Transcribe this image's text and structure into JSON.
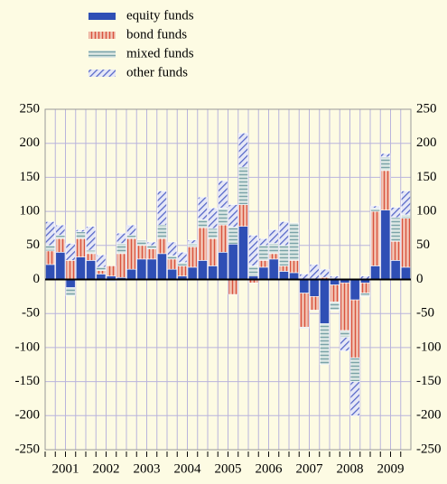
{
  "chart_data": {
    "type": "bar",
    "stacked": true,
    "categories": [
      null,
      null,
      null,
      null,
      null,
      null,
      null,
      null,
      null,
      null,
      null,
      null,
      null,
      null,
      null,
      null,
      null,
      null,
      null,
      null,
      null,
      null,
      null,
      null,
      null,
      null,
      null,
      null,
      null,
      null,
      null,
      null,
      null,
      null,
      null,
      null
    ],
    "year_labels": [
      "2001",
      "2002",
      "2003",
      "2004",
      "2005",
      "2006",
      "2007",
      "2008",
      "2009"
    ],
    "series": [
      {
        "name": "equity funds",
        "color": "#2f4fb5",
        "pattern": "solid",
        "values": [
          22,
          40,
          -12,
          33,
          28,
          8,
          5,
          3,
          15,
          30,
          30,
          38,
          15,
          5,
          18,
          28,
          20,
          40,
          52,
          78,
          5,
          18,
          30,
          12,
          10,
          -20,
          -25,
          -65,
          -8,
          -5,
          -30,
          -5,
          20,
          102,
          28,
          18
        ]
      },
      {
        "name": "bond funds",
        "color": "#d9533f",
        "pattern": "vertical",
        "values": [
          20,
          20,
          28,
          27,
          10,
          5,
          15,
          35,
          45,
          20,
          15,
          22,
          15,
          15,
          30,
          48,
          40,
          40,
          -22,
          32,
          -5,
          10,
          8,
          8,
          18,
          -50,
          -20,
          3,
          -25,
          -70,
          -85,
          -15,
          80,
          58,
          28,
          72
        ]
      },
      {
        "name": "mixed funds",
        "color": "#7aa3a8",
        "pattern": "horizontal",
        "values": [
          8,
          5,
          -12,
          10,
          5,
          5,
          -3,
          15,
          5,
          8,
          5,
          20,
          5,
          5,
          5,
          12,
          15,
          25,
          25,
          55,
          15,
          22,
          15,
          30,
          55,
          -2,
          0,
          -60,
          -12,
          -10,
          -35,
          -5,
          5,
          20,
          35,
          5
        ]
      },
      {
        "name": "other funds",
        "color": "#5566c8",
        "pattern": "diagonal",
        "values": [
          35,
          15,
          25,
          3,
          35,
          18,
          0,
          15,
          15,
          0,
          5,
          50,
          20,
          15,
          5,
          33,
          30,
          40,
          33,
          50,
          45,
          10,
          20,
          35,
          0,
          8,
          22,
          12,
          5,
          -20,
          -50,
          5,
          3,
          5,
          15,
          35
        ]
      }
    ],
    "ylim": [
      -250,
      250
    ],
    "yticks": [
      -250,
      -200,
      -150,
      -100,
      -50,
      0,
      50,
      100,
      150,
      200,
      250
    ],
    "grid": true,
    "legend": "top-left"
  }
}
